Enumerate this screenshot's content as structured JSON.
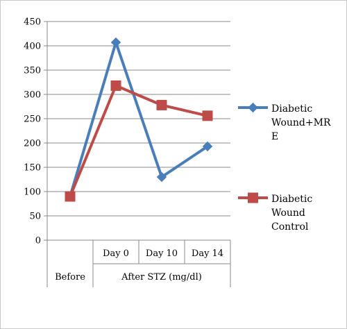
{
  "chart_data": {
    "type": "line",
    "categories": [
      "Before",
      "Day 0",
      "Day 10",
      "Day 14"
    ],
    "category_group_label": "After STZ (mg/dl)",
    "ylim": [
      0,
      450
    ],
    "yticks": [
      0,
      50,
      100,
      150,
      200,
      250,
      300,
      350,
      400,
      450
    ],
    "grid": true,
    "legend_position": "right",
    "series": [
      {
        "name_lines": [
          "Diabetic",
          "Wound+MR",
          "E"
        ],
        "color": "#4a7ebb",
        "marker": "diamond",
        "values": [
          90,
          407,
          130,
          193
        ]
      },
      {
        "name_lines": [
          "Diabetic",
          "Wound",
          "Control"
        ],
        "color": "#be4b48",
        "marker": "square",
        "values": [
          90,
          318,
          278,
          256
        ]
      }
    ]
  }
}
